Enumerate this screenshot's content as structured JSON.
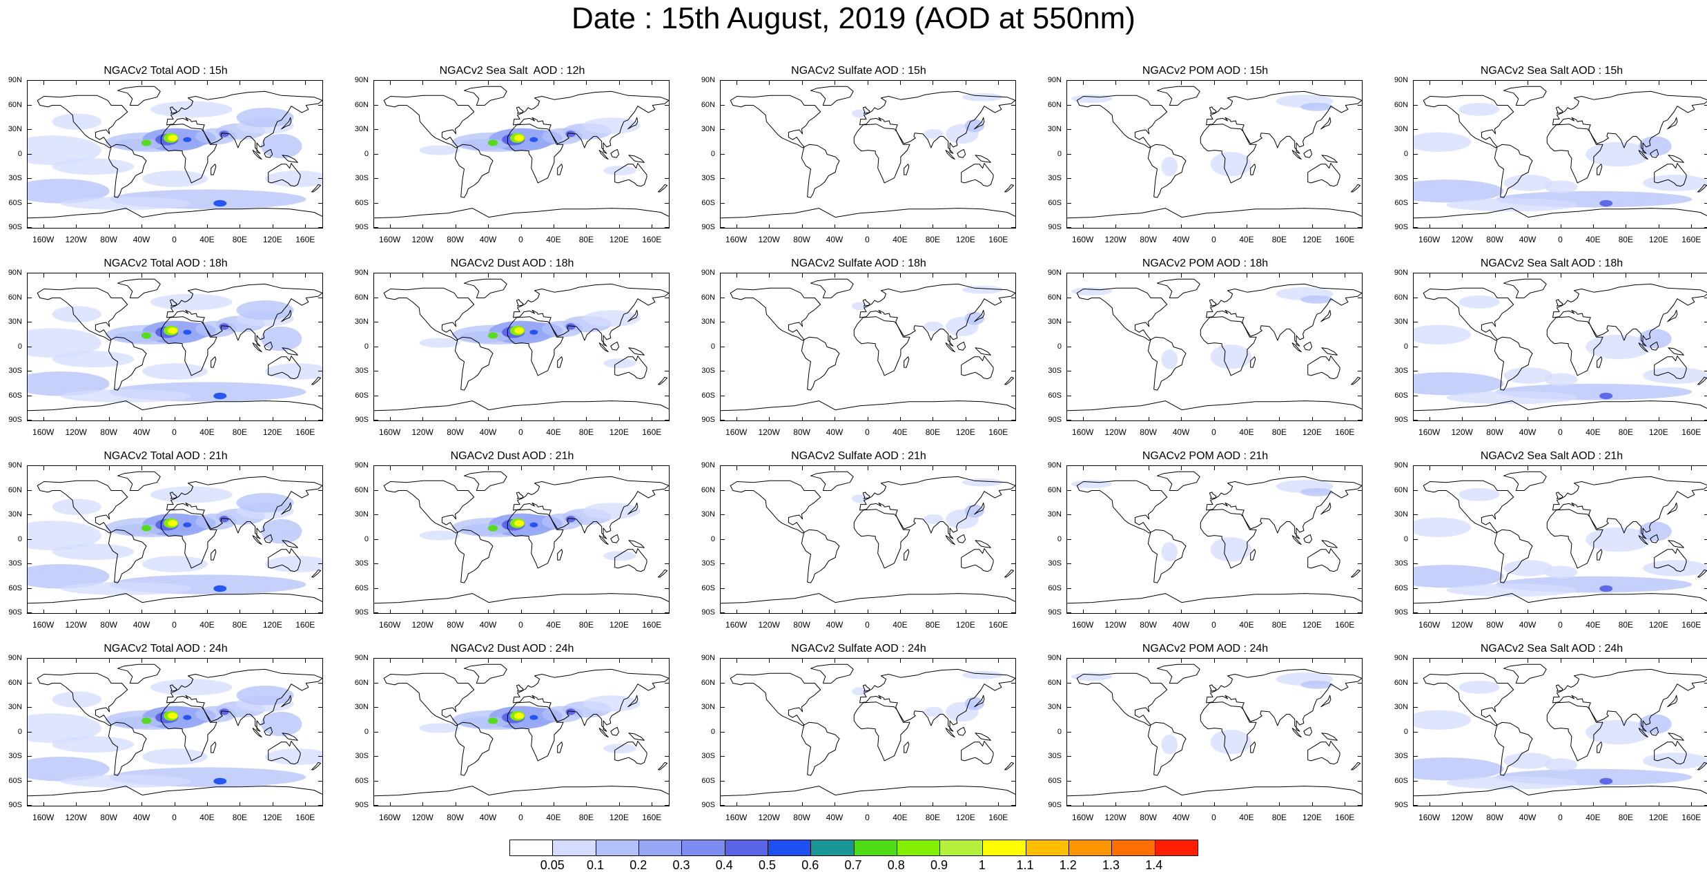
{
  "title": "Date : 15th August, 2019 (AOD at 550nm)",
  "lat_ticks": [
    "90N",
    "60N",
    "30N",
    "0",
    "30S",
    "60S",
    "90S"
  ],
  "lon_ticks": [
    "160W",
    "120W",
    "80W",
    "40W",
    "0",
    "40E",
    "80E",
    "120E",
    "160E"
  ],
  "rows": [
    [
      "NGACv2 Total AOD : 15h",
      "NGACv2 Sea Salt  AOD : 12h",
      "NGACv2 Sulfate AOD : 15h",
      "NGACv2 POM AOD : 15h",
      "NGACv2 Sea Salt AOD : 15h"
    ],
    [
      "NGACv2 Total AOD : 18h",
      "NGACv2 Dust AOD : 18h",
      "NGACv2 Sulfate AOD : 18h",
      "NGACv2 POM AOD : 18h",
      "NGACv2 Sea Salt AOD : 18h"
    ],
    [
      "NGACv2 Total AOD : 21h",
      "NGACv2 Dust AOD : 21h",
      "NGACv2 Sulfate AOD : 21h",
      "NGACv2 POM AOD : 21h",
      "NGACv2 Sea Salt AOD : 21h"
    ],
    [
      "NGACv2 Total AOD : 24h",
      "NGACv2 Dust AOD : 24h",
      "NGACv2 Sulfate AOD : 24h",
      "NGACv2 POM AOD : 24h",
      "NGACv2 Sea Salt AOD : 24h"
    ]
  ],
  "colorbar": {
    "labels": [
      "0.05",
      "0.1",
      "0.2",
      "0.3",
      "0.4",
      "0.5",
      "0.6",
      "0.7",
      "0.8",
      "0.9",
      "1",
      "1.1",
      "1.2",
      "1.3",
      "1.4"
    ],
    "colors": [
      "#ffffff",
      "#d4dcff",
      "#b3c1fa",
      "#96a8f5",
      "#7d8cf0",
      "#5a64e6",
      "#1e50f0",
      "#1b9696",
      "#50dc14",
      "#82f000",
      "#b4f03c",
      "#ffff00",
      "#ffbe00",
      "#ff9600",
      "#ff6e00",
      "#ff1e00"
    ]
  }
}
